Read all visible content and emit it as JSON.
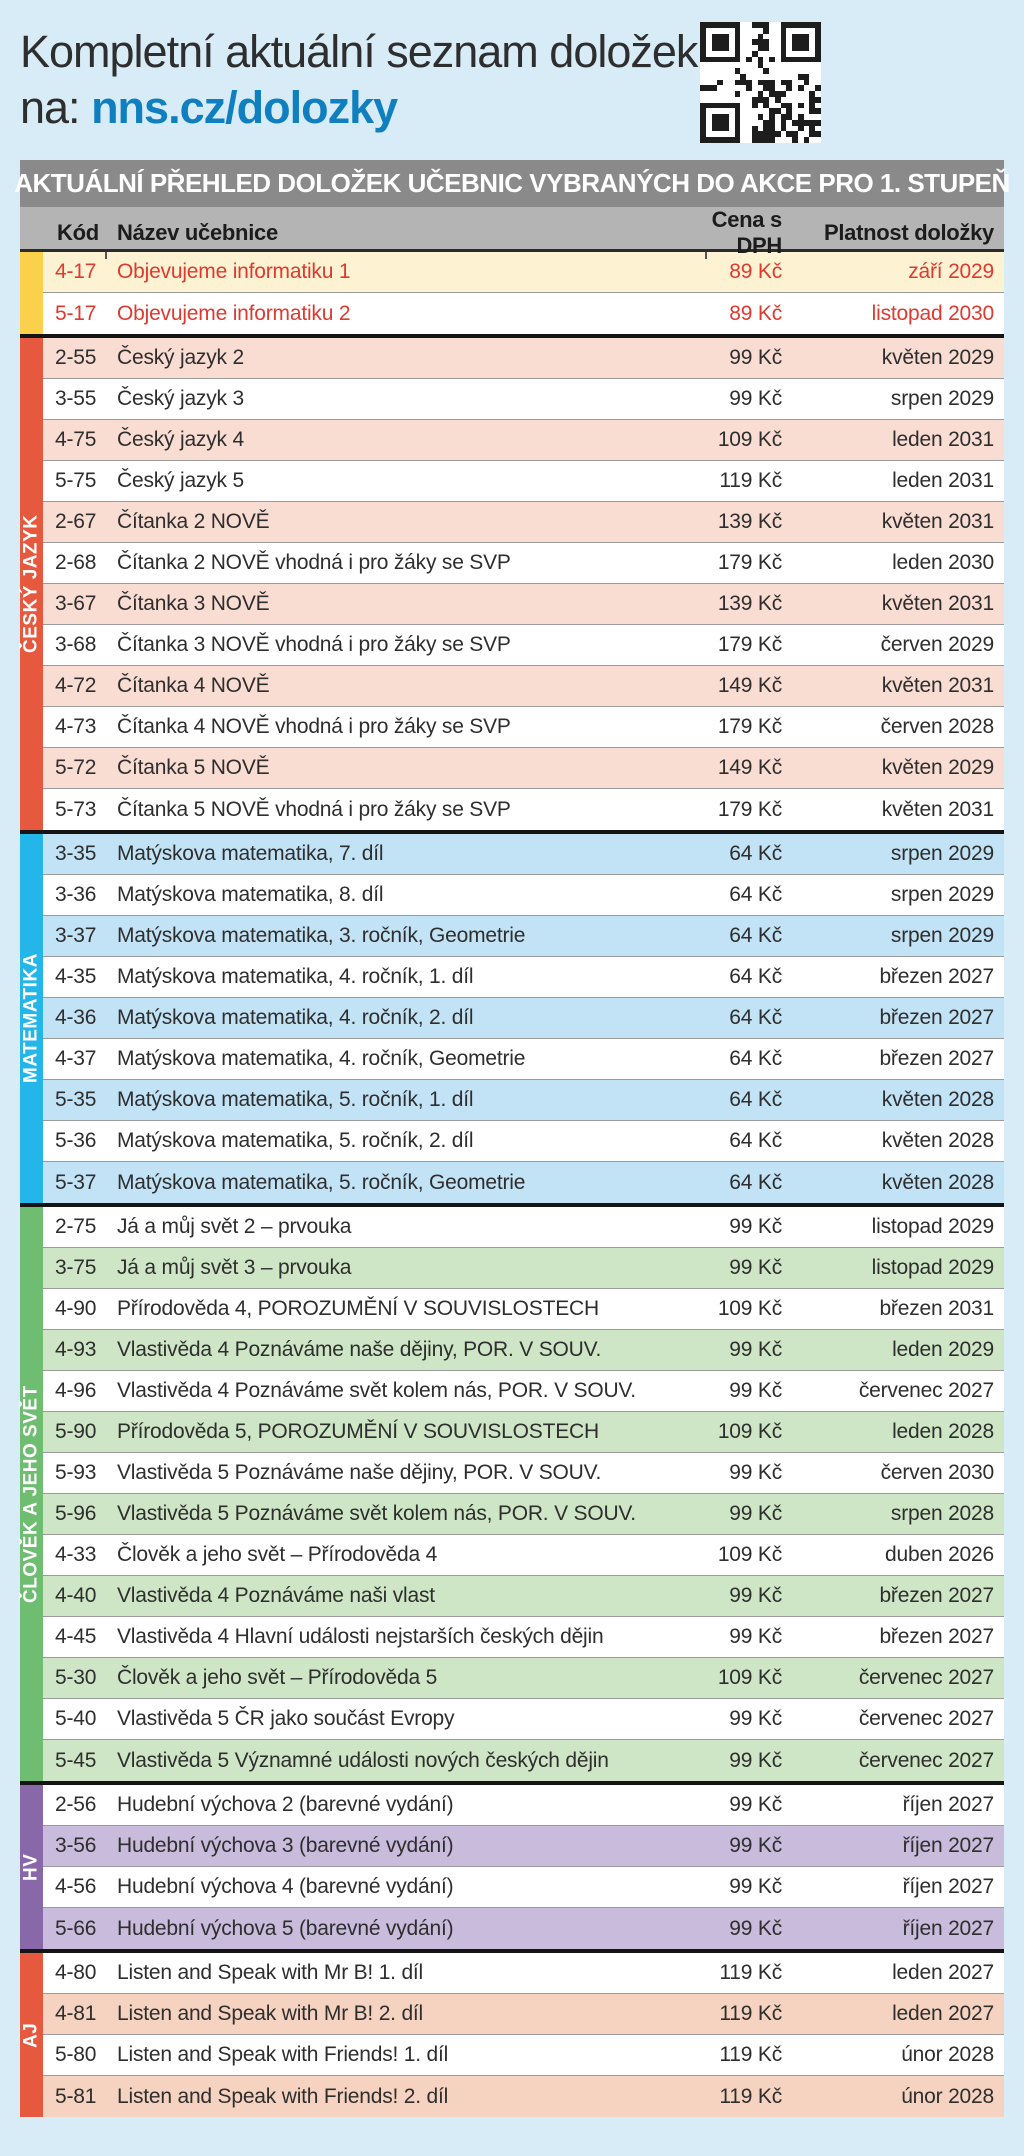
{
  "header": {
    "title_line1": "Kompletní aktuální seznam doložek",
    "link_prefix": "na: ",
    "link_text": "nns.cz/dolozky",
    "link_color": "#0f7fc0",
    "qr_icon": "qr-code"
  },
  "table": {
    "title": "AKTUÁLNÍ PŘEHLED DOLOŽEK UČEBNIC VYBRANÝCH DO AKCE PRO 1. STUPEŇ",
    "columns": [
      "Kód",
      "Název učebnice",
      "Cena s DPH",
      "Platnost doložky"
    ],
    "colors": {
      "title_bar": "#8a8a8a",
      "column_bar": "#b4b4b4",
      "row_separator": "#9b9b9b",
      "section_separator": "#141414",
      "background": "#d8ecf8"
    },
    "sections": [
      {
        "label": "",
        "sidebar_color": "#fbd14b",
        "tint": "#fdf3d3",
        "text_color": "#e0392f",
        "start_shaded": true,
        "rows": [
          {
            "code": "4-17",
            "name": "Objevujeme informatiku 1",
            "price": "89 Kč",
            "validity": "září 2029"
          },
          {
            "code": "5-17",
            "name": "Objevujeme informatiku 2",
            "price": "89 Kč",
            "validity": "listopad 2030"
          }
        ]
      },
      {
        "label": "ČESKÝ JAZYK",
        "sidebar_color": "#e6593f",
        "tint": "#f9dcd2",
        "text_color": "#2e2e2e",
        "start_shaded": true,
        "rows": [
          {
            "code": "2-55",
            "name": "Český jazyk 2",
            "price": "99 Kč",
            "validity": "květen 2029"
          },
          {
            "code": "3-55",
            "name": "Český jazyk 3",
            "price": "99 Kč",
            "validity": "srpen 2029"
          },
          {
            "code": "4-75",
            "name": "Český jazyk 4",
            "price": "109 Kč",
            "validity": "leden 2031"
          },
          {
            "code": "5-75",
            "name": "Český jazyk 5",
            "price": "119 Kč",
            "validity": "leden 2031"
          },
          {
            "code": "2-67",
            "name": "Čítanka 2 NOVĚ",
            "price": "139 Kč",
            "validity": "květen 2031"
          },
          {
            "code": "2-68",
            "name": "Čítanka 2 NOVĚ vhodná i pro žáky se SVP",
            "price": "179 Kč",
            "validity": "leden 2030"
          },
          {
            "code": "3-67",
            "name": "Čítanka 3 NOVĚ",
            "price": "139 Kč",
            "validity": "květen 2031"
          },
          {
            "code": "3-68",
            "name": "Čítanka 3 NOVĚ vhodná i pro žáky se SVP",
            "price": "179 Kč",
            "validity": "červen 2029"
          },
          {
            "code": "4-72",
            "name": "Čítanka 4 NOVĚ",
            "price": "149 Kč",
            "validity": "květen 2031"
          },
          {
            "code": "4-73",
            "name": "Čítanka 4 NOVĚ vhodná i pro žáky se SVP",
            "price": "179 Kč",
            "validity": "červen 2028"
          },
          {
            "code": "5-72",
            "name": "Čítanka 5 NOVĚ",
            "price": "149 Kč",
            "validity": "květen 2029"
          },
          {
            "code": "5-73",
            "name": "Čítanka 5 NOVĚ vhodná i pro žáky se SVP",
            "price": "179 Kč",
            "validity": "květen 2031"
          }
        ]
      },
      {
        "label": "MATEMATIKA",
        "sidebar_color": "#25b6e9",
        "tint": "#c2e2f6",
        "text_color": "#2e2e2e",
        "start_shaded": true,
        "rows": [
          {
            "code": "3-35",
            "name": "Matýskova matematika, 7. díl",
            "price": "64 Kč",
            "validity": "srpen 2029"
          },
          {
            "code": "3-36",
            "name": "Matýskova matematika, 8. díl",
            "price": "64 Kč",
            "validity": "srpen 2029"
          },
          {
            "code": "3-37",
            "name": "Matýskova matematika, 3. ročník, Geometrie",
            "price": "64 Kč",
            "validity": "srpen 2029"
          },
          {
            "code": "4-35",
            "name": "Matýskova matematika, 4. ročník, 1. díl",
            "price": "64 Kč",
            "validity": "březen 2027"
          },
          {
            "code": "4-36",
            "name": "Matýskova matematika, 4. ročník, 2. díl",
            "price": "64 Kč",
            "validity": "březen 2027"
          },
          {
            "code": "4-37",
            "name": "Matýskova matematika, 4. ročník, Geometrie",
            "price": "64 Kč",
            "validity": "březen 2027"
          },
          {
            "code": "5-35",
            "name": "Matýskova matematika, 5. ročník, 1. díl",
            "price": "64 Kč",
            "validity": "květen 2028"
          },
          {
            "code": "5-36",
            "name": "Matýskova matematika, 5. ročník, 2. díl",
            "price": "64 Kč",
            "validity": "květen 2028"
          },
          {
            "code": "5-37",
            "name": "Matýskova matematika, 5. ročník, Geometrie",
            "price": "64 Kč",
            "validity": "květen 2028"
          }
        ]
      },
      {
        "label": "ČLOVĚK A JEHO SVĚT",
        "sidebar_color": "#6fbd71",
        "tint": "#cee6c6",
        "text_color": "#2e2e2e",
        "start_shaded": false,
        "rows": [
          {
            "code": "2-75",
            "name": "Já a můj svět 2 – prvouka",
            "price": "99 Kč",
            "validity": "listopad 2029"
          },
          {
            "code": "3-75",
            "name": "Já a můj svět 3 – prvouka",
            "price": "99 Kč",
            "validity": "listopad 2029"
          },
          {
            "code": "4-90",
            "name": "Přírodověda 4, POROZUMĚNÍ V SOUVISLOSTECH",
            "price": "109 Kč",
            "validity": "březen 2031"
          },
          {
            "code": "4-93",
            "name": "Vlastivěda 4 Poznáváme naše dějiny, POR. V SOUV.",
            "price": "99 Kč",
            "validity": "leden 2029"
          },
          {
            "code": "4-96",
            "name": "Vlastivěda 4 Poznáváme svět kolem nás, POR. V SOUV.",
            "price": "99 Kč",
            "validity": "červenec 2027"
          },
          {
            "code": "5-90",
            "name": "Přírodověda 5, POROZUMĚNÍ V SOUVISLOSTECH",
            "price": "109 Kč",
            "validity": "leden 2028"
          },
          {
            "code": "5-93",
            "name": "Vlastivěda 5 Poznáváme naše dějiny, POR. V SOUV.",
            "price": "99 Kč",
            "validity": "červen 2030"
          },
          {
            "code": "5-96",
            "name": "Vlastivěda 5 Poznáváme svět kolem nás, POR. V SOUV.",
            "price": "99 Kč",
            "validity": "srpen 2028"
          },
          {
            "code": "4-33",
            "name": "Člověk a jeho svět – Přírodověda 4",
            "price": "109 Kč",
            "validity": "duben 2026"
          },
          {
            "code": "4-40",
            "name": "Vlastivěda 4 Poznáváme naši vlast",
            "price": "99 Kč",
            "validity": "březen 2027"
          },
          {
            "code": "4-45",
            "name": "Vlastivěda 4 Hlavní události nejstarších českých dějin",
            "price": "99 Kč",
            "validity": "březen 2027"
          },
          {
            "code": "5-30",
            "name": "Člověk a jeho svět – Přírodověda 5",
            "price": "109 Kč",
            "validity": "červenec 2027"
          },
          {
            "code": "5-40",
            "name": "Vlastivěda 5 ČR jako součást Evropy",
            "price": "99 Kč",
            "validity": "červenec 2027"
          },
          {
            "code": "5-45",
            "name": "Vlastivěda 5 Významné události nových českých dějin",
            "price": "99 Kč",
            "validity": "červenec 2027"
          }
        ]
      },
      {
        "label": "HV",
        "sidebar_color": "#8968aa",
        "tint": "#c8bbdb",
        "text_color": "#2e2e2e",
        "start_shaded": false,
        "rows": [
          {
            "code": "2-56",
            "name": "Hudební výchova 2 (barevné vydání)",
            "price": "99 Kč",
            "validity": "říjen 2027"
          },
          {
            "code": "3-56",
            "name": "Hudební výchova 3 (barevné vydání)",
            "price": "99 Kč",
            "validity": "říjen 2027"
          },
          {
            "code": "4-56",
            "name": "Hudební výchova 4 (barevné vydání)",
            "price": "99 Kč",
            "validity": "říjen 2027"
          },
          {
            "code": "5-66",
            "name": "Hudební výchova 5 (barevné vydání)",
            "price": "99 Kč",
            "validity": "říjen 2027"
          }
        ]
      },
      {
        "label": "AJ",
        "sidebar_color": "#e6593f",
        "tint": "#f5d3c0",
        "text_color": "#2e2e2e",
        "start_shaded": false,
        "rows": [
          {
            "code": "4-80",
            "name": "Listen and Speak with Mr B! 1. díl",
            "price": "119 Kč",
            "validity": "leden 2027"
          },
          {
            "code": "4-81",
            "name": "Listen and Speak with Mr B! 2. díl",
            "price": "119 Kč",
            "validity": "leden 2027"
          },
          {
            "code": "5-80",
            "name": "Listen and Speak with Friends! 1. díl",
            "price": "119 Kč",
            "validity": "únor 2028"
          },
          {
            "code": "5-81",
            "name": "Listen and Speak with Friends! 2. díl",
            "price": "119 Kč",
            "validity": "únor 2028"
          }
        ]
      }
    ]
  }
}
